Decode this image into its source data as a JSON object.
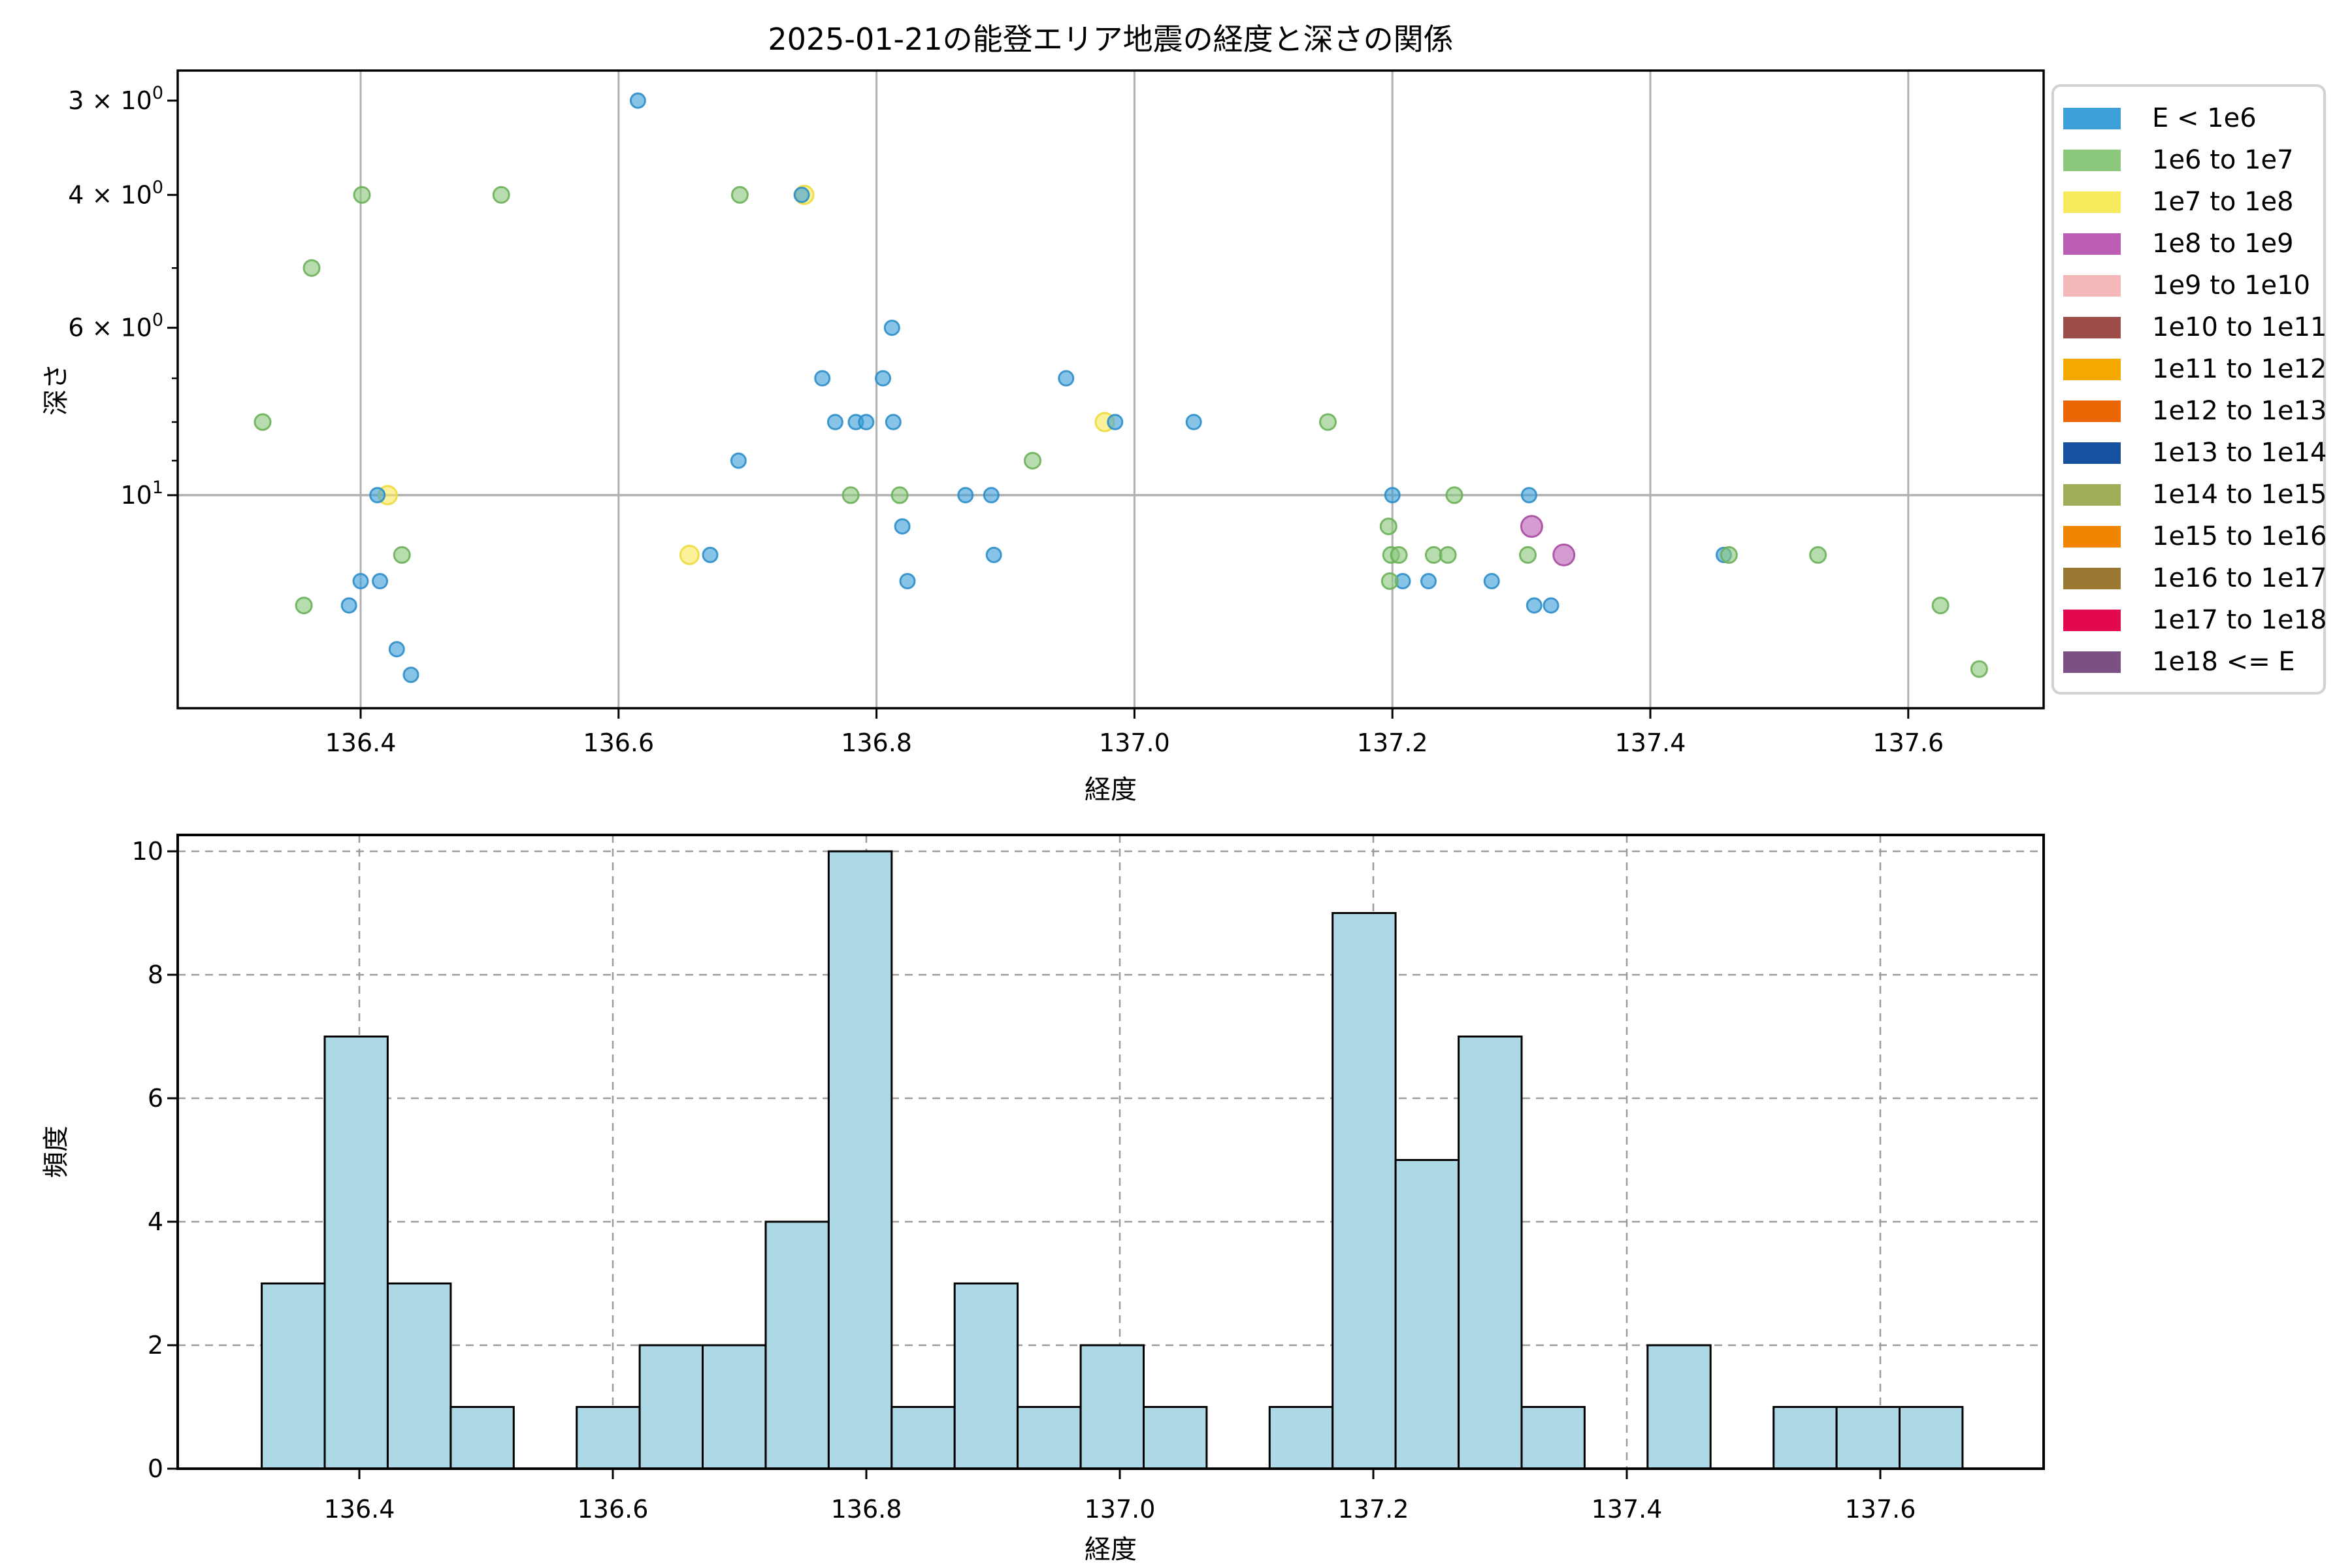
{
  "figure": {
    "title": "2025-01-21の能登エリア地震の経度と深さの関係",
    "background": "#ffffff"
  },
  "legend": {
    "items": [
      {
        "label": "E < 1e6",
        "color": "#3D9FDA"
      },
      {
        "label": "1e6 to 1e7",
        "color": "#8BC87C"
      },
      {
        "label": "1e7 to 1e8",
        "color": "#F7E95C"
      },
      {
        "label": "1e8 to 1e9",
        "color": "#BC5FB4"
      },
      {
        "label": "1e9 to 1e10",
        "color": "#F5B8BA"
      },
      {
        "label": "1e10 to 1e11",
        "color": "#9D4E49"
      },
      {
        "label": "1e11 to 1e12",
        "color": "#F3A900"
      },
      {
        "label": "1e12 to 1e13",
        "color": "#EC6505"
      },
      {
        "label": "1e13 to 1e14",
        "color": "#17509E"
      },
      {
        "label": "1e14 to 1e15",
        "color": "#9EAE58"
      },
      {
        "label": "1e15 to 1e16",
        "color": "#F28500"
      },
      {
        "label": "1e16 to 1e17",
        "color": "#9A7831"
      },
      {
        "label": "1e17 to 1e18",
        "color": "#E3094F"
      },
      {
        "label": "1e18 <= E",
        "color": "#7B5084"
      }
    ]
  },
  "chart_data": [
    {
      "type": "scatter",
      "title": "2025-01-21の能登エリア地震の経度と深さの関係",
      "xlabel": "経度",
      "ylabel": "深さ",
      "x_ticks": [
        136.4,
        136.6,
        136.8,
        137.0,
        137.2,
        137.4,
        137.6
      ],
      "x_tick_labels": [
        "136.4",
        "136.6",
        "136.8",
        "137.0",
        "137.2",
        "137.4",
        "137.6"
      ],
      "y_scale": "log",
      "y_inverted": true,
      "y_major_ticks": [
        {
          "value": 3,
          "mantissa": "3 × 10",
          "exponent": "0"
        },
        {
          "value": 4,
          "mantissa": "4 × 10",
          "exponent": "0"
        },
        {
          "value": 6,
          "mantissa": "6 × 10",
          "exponent": "0"
        },
        {
          "value": 10,
          "mantissa": "10",
          "exponent": "1"
        }
      ],
      "y_minor_ticks": [
        5,
        7,
        8,
        9
      ],
      "xlim": [
        136.258,
        137.705
      ],
      "ylim": [
        2.75,
        19.3
      ],
      "grid": "solid gray, vertical at x ticks and horizontal at depth 10",
      "series": [
        {
          "name": "E < 1e6",
          "color": "#3D9FDA",
          "edge": "#2E8EC9",
          "radius": 11,
          "points": [
            [
              136.615,
              3.0
            ],
            [
              136.742,
              4.0
            ],
            [
              136.812,
              6.0
            ],
            [
              136.758,
              7.0
            ],
            [
              136.805,
              7.0
            ],
            [
              136.947,
              7.0
            ],
            [
              136.768,
              8.0
            ],
            [
              136.784,
              8.0
            ],
            [
              136.792,
              8.0
            ],
            [
              136.813,
              8.0
            ],
            [
              136.985,
              8.0
            ],
            [
              137.046,
              8.0
            ],
            [
              136.693,
              9.0
            ],
            [
              136.413,
              10.0
            ],
            [
              136.869,
              10.0
            ],
            [
              136.889,
              10.0
            ],
            [
              137.2,
              10.0
            ],
            [
              137.306,
              10.0
            ],
            [
              136.82,
              11.0
            ],
            [
              136.671,
              12.0
            ],
            [
              136.891,
              12.0
            ],
            [
              137.457,
              12.0
            ],
            [
              136.4,
              13.0
            ],
            [
              136.415,
              13.0
            ],
            [
              136.824,
              13.0
            ],
            [
              137.208,
              13.0
            ],
            [
              137.228,
              13.0
            ],
            [
              137.277,
              13.0
            ],
            [
              136.391,
              14.0
            ],
            [
              137.31,
              14.0
            ],
            [
              137.323,
              14.0
            ],
            [
              136.428,
              16.0
            ],
            [
              136.439,
              17.3
            ]
          ]
        },
        {
          "name": "1e6 to 1e7",
          "color": "#8BC87C",
          "edge": "#6DB05A",
          "radius": 12,
          "points": [
            [
              136.401,
              4.0
            ],
            [
              136.509,
              4.0
            ],
            [
              136.694,
              4.0
            ],
            [
              136.362,
              5.0
            ],
            [
              136.324,
              8.0
            ],
            [
              137.15,
              8.0
            ],
            [
              136.921,
              9.0
            ],
            [
              136.78,
              10.0
            ],
            [
              136.818,
              10.0
            ],
            [
              137.248,
              10.0
            ],
            [
              137.197,
              11.0
            ],
            [
              136.432,
              12.0
            ],
            [
              137.199,
              12.0
            ],
            [
              137.205,
              12.0
            ],
            [
              137.232,
              12.0
            ],
            [
              137.243,
              12.0
            ],
            [
              137.305,
              12.0
            ],
            [
              137.461,
              12.0
            ],
            [
              137.53,
              12.0
            ],
            [
              137.198,
              13.0
            ],
            [
              136.356,
              14.0
            ],
            [
              137.625,
              14.0
            ],
            [
              137.655,
              17.0
            ]
          ]
        },
        {
          "name": "1e7 to 1e8",
          "color": "#F7E95C",
          "edge": "#EDDC3C",
          "radius": 14,
          "points": [
            [
              136.744,
              4.0
            ],
            [
              136.977,
              8.0
            ],
            [
              136.421,
              10.0
            ],
            [
              136.655,
              12.0
            ]
          ]
        },
        {
          "name": "1e8 to 1e9",
          "color": "#BC5FB4",
          "edge": "#A94BA1",
          "radius": 16,
          "points": [
            [
              137.308,
              11.0
            ],
            [
              137.333,
              12.0
            ]
          ]
        }
      ]
    },
    {
      "type": "histogram",
      "xlabel": "経度",
      "ylabel": "頻度",
      "bin_start": 136.323,
      "bin_width": 0.0497,
      "counts": [
        3,
        7,
        3,
        1,
        0,
        1,
        2,
        2,
        4,
        10,
        1,
        3,
        1,
        2,
        1,
        0,
        1,
        9,
        5,
        7,
        1,
        0,
        2,
        0,
        1,
        1,
        1
      ],
      "x_ticks": [
        136.4,
        136.6,
        136.8,
        137.0,
        137.2,
        137.4,
        137.6
      ],
      "x_tick_labels": [
        "136.4",
        "136.6",
        "136.8",
        "137.0",
        "137.2",
        "137.4",
        "137.6"
      ],
      "y_ticks": [
        0,
        2,
        4,
        6,
        8,
        10
      ],
      "ylim": [
        0,
        10.3
      ],
      "bar_fill": "#ADD8E6",
      "bar_edge": "#000000",
      "grid": "dashed gray"
    }
  ]
}
